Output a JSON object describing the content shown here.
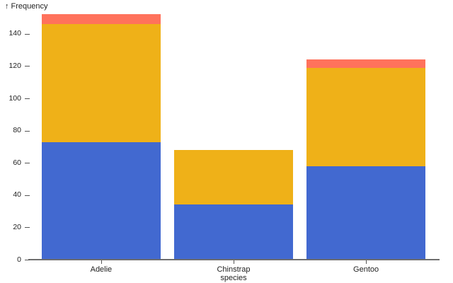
{
  "chart": {
    "y_axis_title_arrow": "↑",
    "y_axis_title": "Frequency",
    "x_axis_label": "species"
  },
  "chart_data": {
    "type": "bar",
    "stacked": true,
    "title": "",
    "xlabel": "species",
    "ylabel": "Frequency",
    "categories": [
      "Adelie",
      "Chinstrap",
      "Gentoo"
    ],
    "series": [
      {
        "name": "blue",
        "color": "#4269d0",
        "values": [
          73,
          34,
          58
        ]
      },
      {
        "name": "orange",
        "color": "#efb118",
        "values": [
          73,
          34,
          61
        ]
      },
      {
        "name": "red",
        "color": "#ff725c",
        "values": [
          6,
          0,
          5
        ]
      }
    ],
    "totals": [
      152,
      68,
      124
    ],
    "y_ticks": [
      0,
      20,
      40,
      60,
      80,
      100,
      120,
      140
    ],
    "ylim": [
      0,
      152
    ],
    "grid": false,
    "legend": false,
    "colors": {
      "blue_segment": "#4269d0",
      "orange_segment": "#efb118",
      "red_segment": "#ff725c",
      "axis_line": "#6e6e6e",
      "tick_mark": "#555555",
      "text": "#222222"
    }
  }
}
